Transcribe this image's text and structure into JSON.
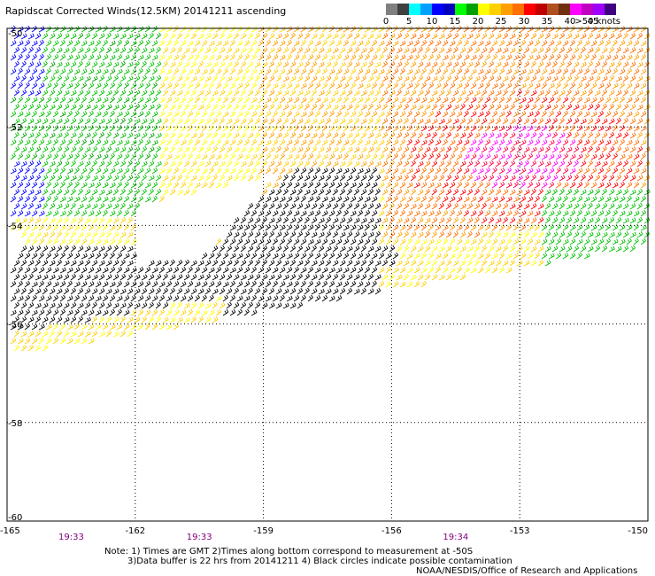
{
  "header": {
    "title": "Rapidscat Corrected Winds(12.5KM) 20141211 ascending"
  },
  "legend": {
    "colors": [
      "#808080",
      "#404040",
      "#00ffff",
      "#00a0ff",
      "#0000ff",
      "#0000c0",
      "#00ff00",
      "#00a000",
      "#ffff00",
      "#ffd000",
      "#ffa000",
      "#ff7000",
      "#ff0000",
      "#c00000",
      "#b05020",
      "#703010",
      "#ff00ff",
      "#c000c0",
      "#a000ff",
      "#400080"
    ],
    "labels": [
      "0",
      "5",
      "10",
      "15",
      "20",
      "25",
      "30",
      "35",
      "40",
      "45",
      ">50 knots"
    ]
  },
  "map": {
    "lat_labels": [
      "-50",
      "-52",
      "-54",
      "-56",
      "-58",
      "-60"
    ],
    "lon_labels": [
      "-165",
      "-162",
      "-159",
      "-156",
      "-153",
      "-150"
    ],
    "time_labels": [
      "19:33",
      "19:33",
      "19:34"
    ],
    "time_color": "#800080",
    "lon_range": [
      -165,
      -150
    ],
    "lat_range": [
      -60,
      -50
    ]
  },
  "footer": {
    "note_line1": "Note: 1) Times are GMT 2)Times along bottom correspond to measurement at -50S",
    "note_line2": "3)Data buffer is 22 hrs from 20141211 4) Black circles indicate possible contamination",
    "credit": "NOAA/NESDIS/Office of Research and Applications"
  }
}
